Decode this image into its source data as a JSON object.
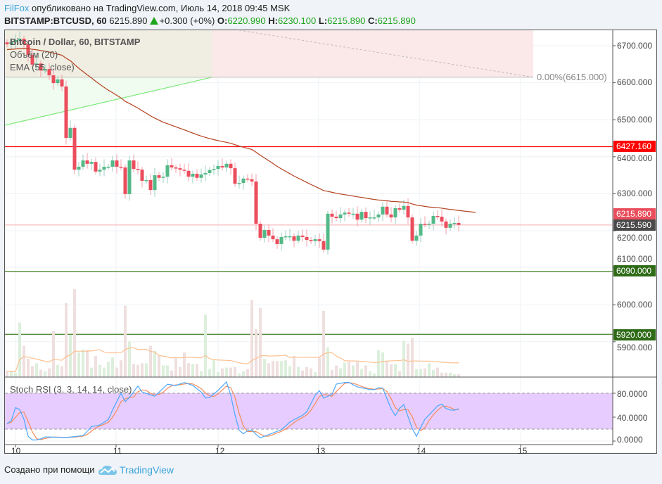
{
  "header": {
    "author": "FilFox",
    "published": "опубликовано на TradingView.com, Июль 14, 2018 09:45 MSK",
    "symbol": "BITSTAMP:BTCUSD, 60",
    "last": "6215.890",
    "change": "+0.300 (+0%)",
    "o_label": "O:",
    "o": "6220.990",
    "h_label": "H:",
    "h": "6230.100",
    "l_label": "L:",
    "l": "6215.890",
    "c_label": "C:",
    "c": "6215.890"
  },
  "legend": {
    "title": "Bitcoin / Dollar, 60, BITSTAMP",
    "volume": "Объём (20)",
    "ema": "EMA (55, close)",
    "stoch": "Stoch RSI (3, 3, 14, 14, close)"
  },
  "fib_label": "0.00%(6615.000)",
  "price_axis": [
    "6700.000",
    "6600.000",
    "6500.000",
    "6400.000",
    "6300.000",
    "6200.000",
    "6100.000",
    "6000.000",
    "5900.000"
  ],
  "stoch_axis": [
    "80.0000",
    "40.0000",
    "0.0000"
  ],
  "time_axis": [
    "10",
    "11",
    "12",
    "13",
    "14",
    "15"
  ],
  "price_labels": {
    "resistance": "6427.160",
    "last": "6215.890",
    "current": "6215.590",
    "support1": "6090.000",
    "support2": "5920.000"
  },
  "colors": {
    "up": "#53b987",
    "down": "#eb4d5c",
    "ema": "#b3411f",
    "resistance": "#ff0000",
    "support": "#3f7d20",
    "stoch_k": "#4aa8ff",
    "stoch_d": "#f58c5b",
    "stoch_band": "#e6ccff",
    "author": "#3ba4dc"
  },
  "footer": {
    "created_with": "Создано при помощи",
    "brand": "TradingView"
  },
  "chart_data": {
    "type": "candlestick",
    "interval": "60",
    "ylim": [
      5780,
      6750
    ],
    "horizontal_lines": [
      6427.16,
      6215.59,
      6090,
      5920,
      6615
    ],
    "closes": [
      6704,
      6710,
      6715,
      6719,
      6704,
      6675,
      6649,
      6652,
      6633,
      6637,
      6620,
      6599,
      6609,
      6590,
      6451,
      6478,
      6365,
      6373,
      6390,
      6381,
      6386,
      6360,
      6365,
      6373,
      6373,
      6390,
      6373,
      6371,
      6299,
      6390,
      6367,
      6365,
      6335,
      6337,
      6310,
      6350,
      6343,
      6346,
      6377,
      6371,
      6369,
      6365,
      6362,
      6346,
      6354,
      6343,
      6352,
      6356,
      6364,
      6367,
      6375,
      6371,
      6381,
      6369,
      6327,
      6329,
      6341,
      6339,
      6333,
      6219,
      6181,
      6202,
      6187,
      6177,
      6164,
      6183,
      6185,
      6185,
      6173,
      6187,
      6183,
      6175,
      6172,
      6177,
      6172,
      6149,
      6246,
      6238,
      6234,
      6244,
      6249,
      6246,
      6246,
      6230,
      6251,
      6234,
      6236,
      6236,
      6244,
      6265,
      6244,
      6236,
      6261,
      6257,
      6267,
      6236,
      6173,
      6187,
      6219,
      6217,
      6219,
      6240,
      6238,
      6225,
      6208,
      6219,
      6221,
      6215.89
    ],
    "volume": [
      8,
      8,
      6,
      75,
      43,
      25,
      15,
      19,
      10,
      8,
      12,
      63,
      17,
      15,
      102,
      58,
      121,
      34,
      38,
      37,
      13,
      29,
      17,
      13,
      21,
      27,
      13,
      23,
      98,
      49,
      18,
      17,
      19,
      19,
      43,
      36,
      30,
      16,
      16,
      9,
      26,
      14,
      34,
      19,
      18,
      18,
      8,
      86,
      11,
      24,
      7,
      12,
      13,
      13,
      14,
      5,
      8,
      11,
      106,
      66,
      95,
      25,
      19,
      22,
      22,
      22,
      23,
      15,
      29,
      14,
      9,
      14,
      12,
      7,
      27,
      91,
      41,
      10,
      16,
      12,
      20,
      21,
      16,
      21,
      11,
      16,
      8,
      5,
      37,
      34,
      22,
      18,
      18,
      8,
      50,
      46,
      54,
      11,
      11,
      12,
      19,
      10,
      13,
      6,
      6,
      6,
      4,
      4
    ],
    "stoch_k_points": [
      [
        0,
        29
      ],
      [
        1,
        34
      ],
      [
        2,
        56
      ],
      [
        3.5,
        51
      ],
      [
        5,
        8
      ],
      [
        6,
        2
      ],
      [
        7.5,
        2
      ],
      [
        9,
        7
      ],
      [
        14,
        6
      ],
      [
        18,
        9
      ],
      [
        20,
        24
      ],
      [
        22,
        27
      ],
      [
        24,
        36
      ],
      [
        25,
        52
      ],
      [
        27,
        80
      ],
      [
        28,
        66
      ],
      [
        29,
        73
      ],
      [
        31,
        92
      ],
      [
        32,
        82
      ],
      [
        35,
        75
      ],
      [
        38,
        95
      ],
      [
        40,
        93
      ],
      [
        42,
        98
      ],
      [
        44,
        93
      ],
      [
        46,
        82
      ],
      [
        47,
        72
      ],
      [
        48,
        73
      ],
      [
        50,
        85
      ],
      [
        52,
        99
      ],
      [
        52.5,
        93
      ],
      [
        54.7,
        21
      ],
      [
        55.8,
        11
      ],
      [
        57.7,
        21
      ],
      [
        59.8,
        5
      ],
      [
        62.8,
        13
      ],
      [
        65,
        19
      ],
      [
        67.2,
        33
      ],
      [
        70.8,
        46
      ],
      [
        73.8,
        88
      ],
      [
        74.7,
        71
      ],
      [
        77,
        78
      ],
      [
        77.8,
        95
      ],
      [
        80.8,
        99
      ],
      [
        82.8,
        91
      ],
      [
        86.7,
        85
      ],
      [
        88.8,
        92
      ],
      [
        90,
        71
      ],
      [
        91.8,
        40
      ],
      [
        93.8,
        65
      ],
      [
        96.8,
        5
      ],
      [
        98.8,
        35
      ],
      [
        102.7,
        64
      ],
      [
        104.2,
        53
      ],
      [
        105.8,
        51
      ],
      [
        106.7,
        54
      ]
    ],
    "stoch_ylim": [
      0,
      100
    ],
    "stoch_bands": [
      20,
      80
    ]
  }
}
